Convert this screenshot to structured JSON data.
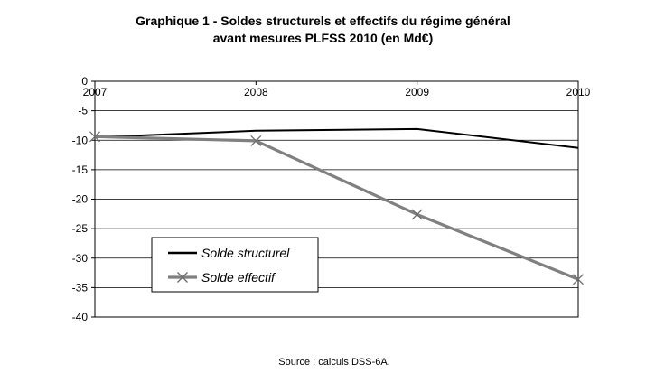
{
  "chart_data": {
    "type": "line",
    "title": "Graphique 1 - Soldes structurels et effectifs du régime général",
    "subtitle": "avant mesures PLFSS 2010 (en Md€)",
    "xlabel": "",
    "ylabel": "",
    "categories": [
      "2007",
      "2008",
      "2009",
      "2010"
    ],
    "ylim": [
      -40,
      0
    ],
    "yticks": [
      0,
      -5,
      -10,
      -15,
      -20,
      -25,
      -30,
      -35,
      -40
    ],
    "grid": true,
    "legend_position": "lower-left",
    "series": [
      {
        "name": "Solde structurel",
        "values": [
          -9.5,
          -8.4,
          -8.1,
          -11.3
        ],
        "color": "#000000",
        "marker": "none"
      },
      {
        "name": "Solde effectif",
        "values": [
          -9.4,
          -10.1,
          -22.6,
          -33.6
        ],
        "color": "#808080",
        "marker": "x"
      }
    ]
  },
  "source": "Source : calculs DSS-6A."
}
